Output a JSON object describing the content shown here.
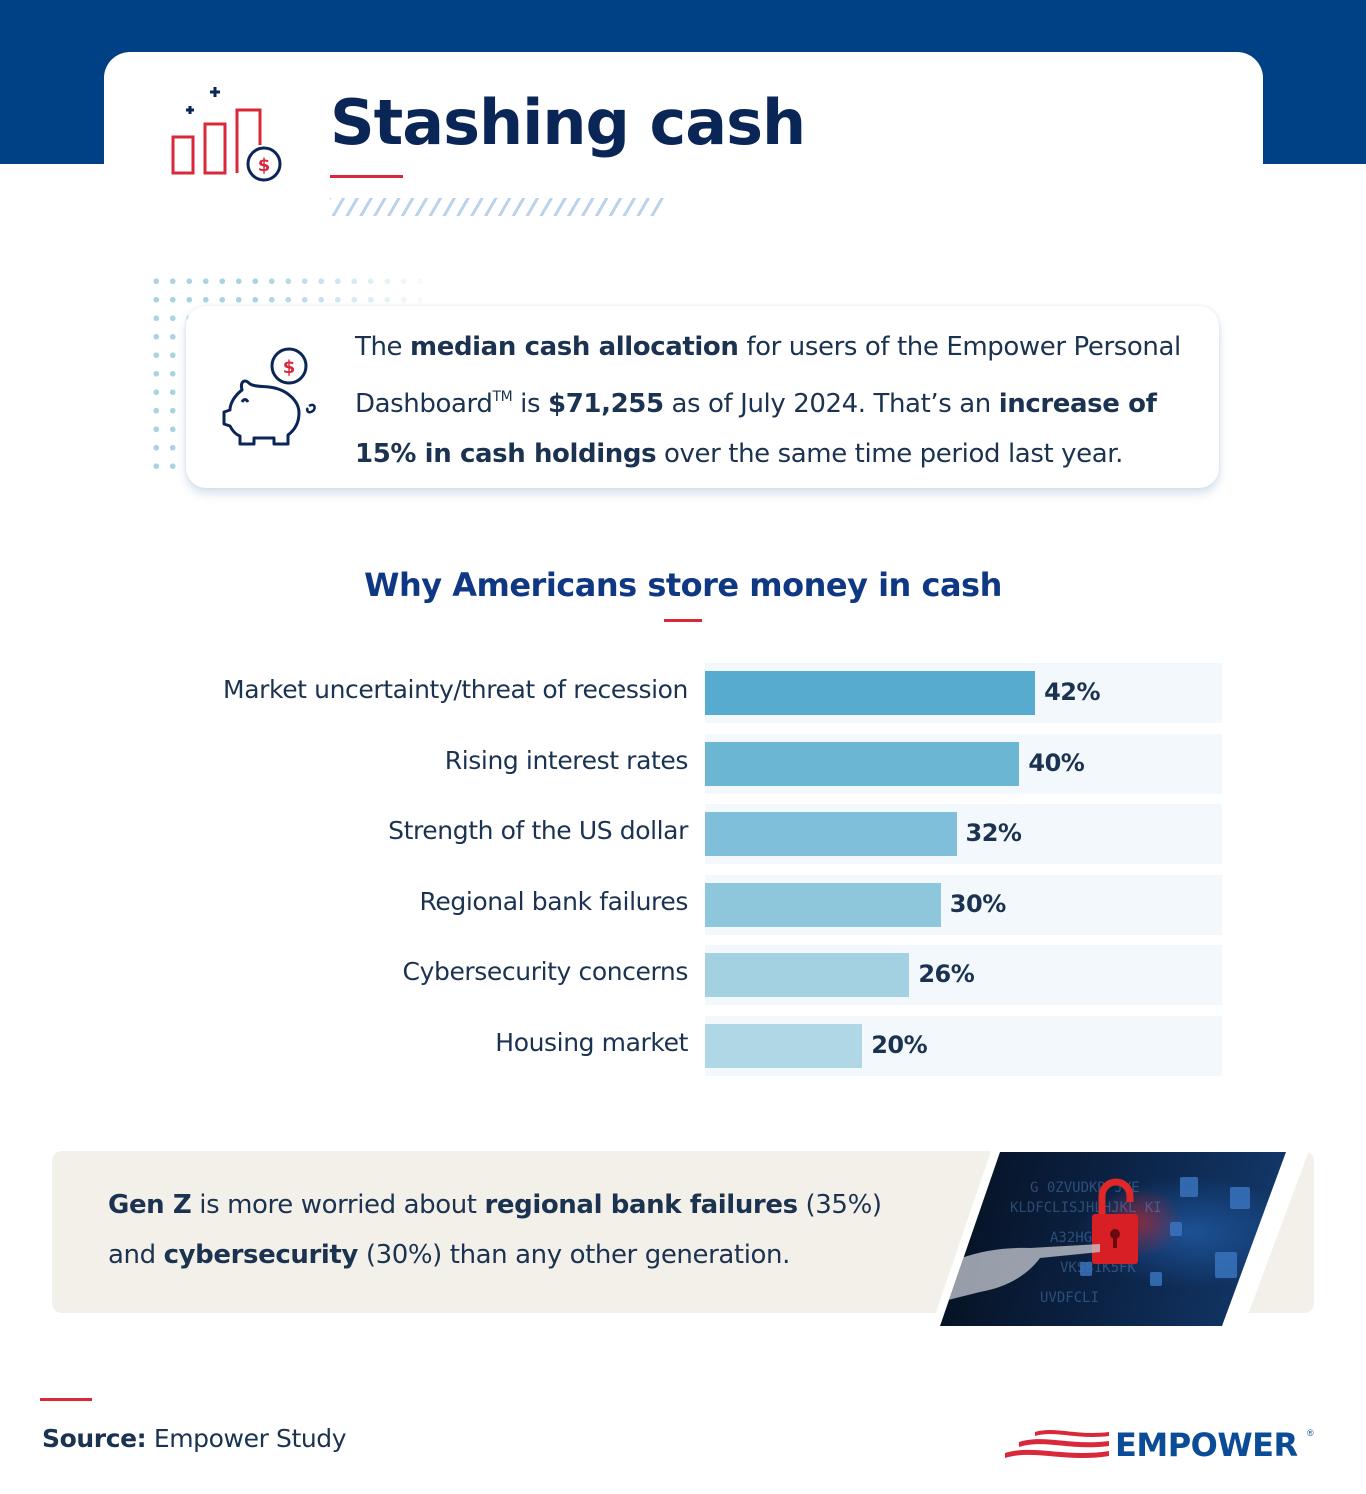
{
  "header": {
    "title": "Stashing cash",
    "icon": "bar-chart-dollar-icon",
    "accent_color": "#d8283a",
    "band_color": "#004185"
  },
  "stat_card": {
    "icon": "piggy-bank-icon",
    "segments": [
      {
        "text": "The ",
        "bold": false
      },
      {
        "text": "median cash allocation",
        "bold": true
      },
      {
        "text": " for users of the Empower Personal Dashboard",
        "bold": false
      },
      {
        "text": "TM",
        "sup": true
      },
      {
        "text": " is ",
        "bold": false
      },
      {
        "text": "$71,255",
        "bold": true
      },
      {
        "text": " as of July 2024. That’s an ",
        "bold": false
      },
      {
        "text": "increase of 15% in cash holdings",
        "bold": true
      },
      {
        "text": " over the same time period last year.",
        "bold": false
      }
    ]
  },
  "chart_data": {
    "type": "bar",
    "orientation": "horizontal",
    "title": "Why Americans store money in cash",
    "categories": [
      "Market uncertainty/threat of recession",
      "Rising interest rates",
      "Strength of the US dollar",
      "Regional bank failures",
      "Cybersecurity concerns",
      "Housing market"
    ],
    "values": [
      42,
      40,
      32,
      30,
      26,
      20
    ],
    "value_labels": [
      "42%",
      "40%",
      "32%",
      "30%",
      "26%",
      "20%"
    ],
    "bar_colors": [
      "#56abce",
      "#6bb6d3",
      "#80bfda",
      "#8ec6dc",
      "#a4d1e2",
      "#afd7e6"
    ],
    "track_color": "#f3f8fc",
    "xlabel": "",
    "ylabel": "",
    "unit": "%",
    "grid": false,
    "legend": null
  },
  "genz_callout": {
    "segments": [
      {
        "text": "Gen Z",
        "bold": true
      },
      {
        "text": " is more worried about ",
        "bold": false
      },
      {
        "text": "regional bank failures",
        "bold": true
      },
      {
        "text": " (35%) and ",
        "bold": false
      },
      {
        "text": "cybersecurity",
        "bold": true
      },
      {
        "text": " (30%) than any other generation.",
        "bold": false
      }
    ],
    "image": "cybersecurity-unlocked-padlock-image"
  },
  "footer": {
    "source_label": "Source:",
    "source_value": "Empower Study",
    "logo_text": "EMPOWER",
    "logo_reg": "®"
  }
}
